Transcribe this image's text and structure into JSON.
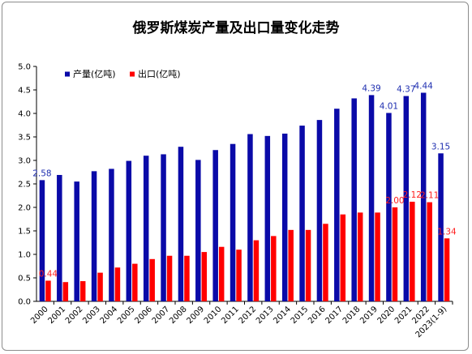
{
  "chart_data": {
    "type": "bar",
    "title": "俄罗斯煤炭产量及出口量变化走势",
    "xlabel": "",
    "ylabel": "",
    "ylim": [
      0,
      5.0
    ],
    "yticks": [
      "0.0",
      "0.5",
      "1.0",
      "1.5",
      "2.0",
      "2.5",
      "3.0",
      "3.5",
      "4.0",
      "4.5",
      "5.0"
    ],
    "grid": false,
    "legend_position": "top-left",
    "categories": [
      "2000",
      "2001",
      "2002",
      "2003",
      "2004",
      "2005",
      "2006",
      "2007",
      "2008",
      "2009",
      "2010",
      "2011",
      "2012",
      "2013",
      "2014",
      "2015",
      "2016",
      "2017",
      "2018",
      "2019",
      "2020",
      "2021",
      "2022",
      "2023(1-9)"
    ],
    "series": [
      {
        "name": "产量(亿吨)",
        "color": "#0a0aa8",
        "values": [
          2.58,
          2.69,
          2.55,
          2.77,
          2.82,
          2.99,
          3.1,
          3.13,
          3.29,
          3.01,
          3.22,
          3.35,
          3.56,
          3.52,
          3.57,
          3.74,
          3.86,
          4.1,
          4.32,
          4.39,
          4.01,
          4.37,
          4.44,
          3.15
        ],
        "data_labels": [
          "2.58",
          "",
          "",
          "",
          "",
          "",
          "",
          "",
          "",
          "",
          "",
          "",
          "",
          "",
          "",
          "",
          "",
          "",
          "",
          "4.39",
          "4.01",
          "4.37",
          "4.44",
          "3.15"
        ]
      },
      {
        "name": "出口(亿吨)",
        "color": "#ff0000",
        "values": [
          0.44,
          0.41,
          0.43,
          0.61,
          0.72,
          0.8,
          0.9,
          0.97,
          0.97,
          1.05,
          1.16,
          1.1,
          1.3,
          1.39,
          1.52,
          1.52,
          1.65,
          1.85,
          1.89,
          1.89,
          2.0,
          2.12,
          2.11,
          1.34
        ],
        "data_labels": [
          "0.44",
          "",
          "",
          "",
          "",
          "",
          "",
          "",
          "",
          "",
          "",
          "",
          "",
          "",
          "",
          "",
          "",
          "",
          "",
          "",
          "2.00",
          "2.12",
          "2.11",
          "1.34"
        ]
      }
    ]
  }
}
